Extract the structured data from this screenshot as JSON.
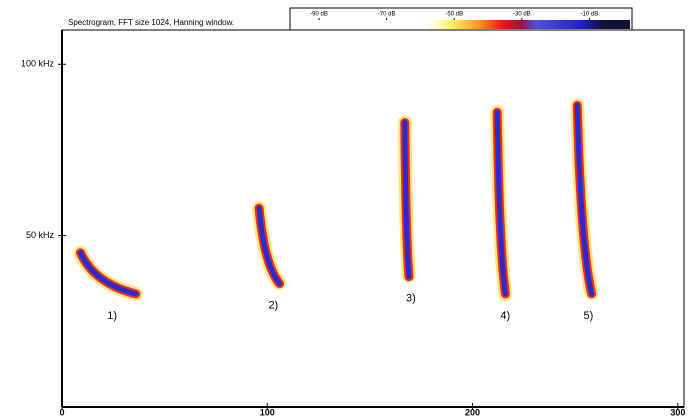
{
  "chart_data": {
    "type": "spectrogram",
    "title": "Spectrogram, FFT size 1024, Hanning window.",
    "xlim": [
      0,
      303
    ],
    "xticks": [
      0,
      100,
      200,
      300
    ],
    "ylim": [
      0,
      110
    ],
    "yticks": [
      {
        "value": 50,
        "label": "50 kHz"
      },
      {
        "value": 100,
        "label": "100 kHz"
      }
    ],
    "colorbar": {
      "lim": [
        -98,
        2
      ],
      "ticks": [
        {
          "value": -90,
          "label": "-90 dB"
        },
        {
          "value": -70,
          "label": "-70 dB"
        },
        {
          "value": -50,
          "label": "-50 dB"
        },
        {
          "value": -30,
          "label": "-30 dB"
        },
        {
          "value": -10,
          "label": "-10 dB"
        }
      ]
    },
    "color": "#2a2ad0",
    "calls": [
      {
        "label": "1)",
        "x": [
          9,
          36
        ],
        "y": [
          45,
          33
        ]
      },
      {
        "label": "2)",
        "x": [
          96,
          106
        ],
        "y": [
          58,
          36
        ]
      },
      {
        "label": "3)",
        "x": [
          167,
          169
        ],
        "y": [
          83,
          38
        ]
      },
      {
        "label": "4)",
        "x": [
          212,
          216
        ],
        "y": [
          86,
          33
        ]
      },
      {
        "label": "5)",
        "x": [
          251,
          258
        ],
        "y": [
          88,
          33
        ]
      }
    ]
  }
}
